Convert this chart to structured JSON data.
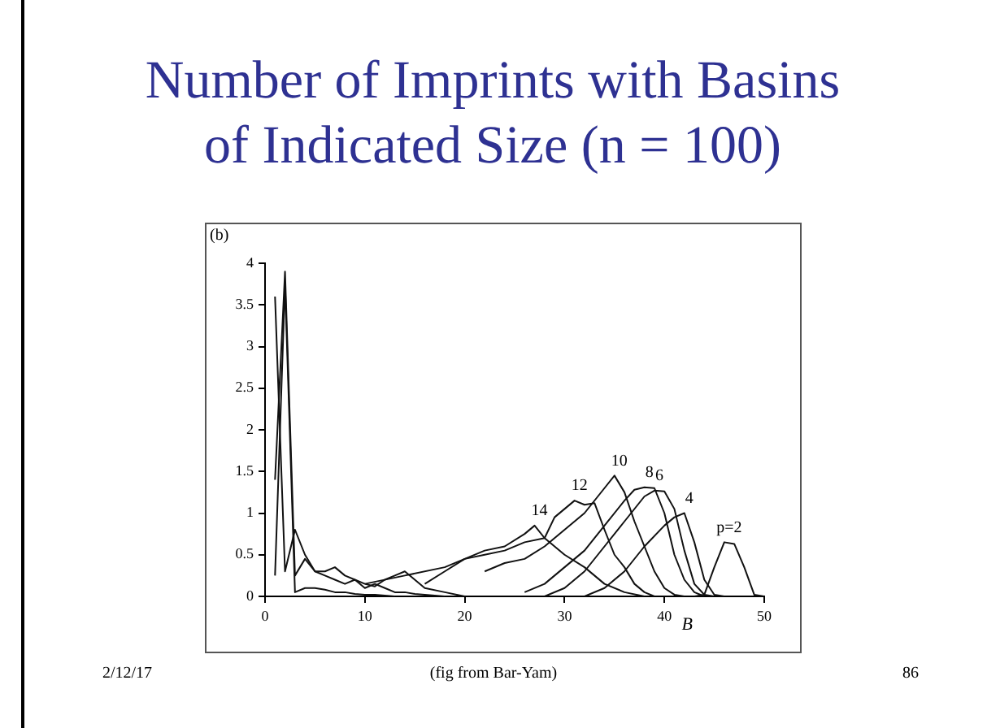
{
  "chart_data": {
    "type": "line",
    "title": "Number of Imprints with Basins of Indicated Size (n = 100)",
    "xlabel": "B",
    "xlim": [
      0,
      50
    ],
    "xticks": [
      0,
      10,
      20,
      30,
      40,
      50
    ],
    "ylim": [
      0,
      4
    ],
    "yticks": [
      0,
      0.5,
      1,
      1.5,
      2,
      2.5,
      3,
      3.5,
      4
    ],
    "grid": false,
    "legend": false,
    "marker": "none",
    "line_style": "solid",
    "annotations": [
      "(b)",
      "2/12/17",
      "(fig from Bar-Yam)",
      "86"
    ],
    "series": [
      {
        "name": "p=2",
        "color": "#111111",
        "x": [
          43,
          44,
          45,
          46,
          47,
          48,
          49,
          50
        ],
        "values": [
          0,
          0.02,
          0.35,
          0.65,
          0.63,
          0.35,
          0.02,
          0
        ]
      },
      {
        "name": "4",
        "color": "#111111",
        "x": [
          32,
          34,
          36,
          38,
          40,
          41,
          42,
          43,
          44,
          45,
          46
        ],
        "values": [
          0,
          0.1,
          0.3,
          0.6,
          0.85,
          0.95,
          1,
          0.65,
          0.2,
          0.02,
          0
        ]
      },
      {
        "name": "6",
        "color": "#111111",
        "x": [
          28,
          30,
          32,
          34,
          36,
          38,
          39,
          40,
          41,
          42,
          43,
          44,
          45
        ],
        "values": [
          0,
          0.1,
          0.3,
          0.6,
          0.9,
          1.2,
          1.27,
          1.26,
          1.05,
          0.55,
          0.15,
          0.02,
          0
        ]
      },
      {
        "name": "8",
        "color": "#111111",
        "x": [
          26,
          28,
          30,
          32,
          34,
          36,
          37,
          38,
          39,
          40,
          41,
          42,
          43,
          44
        ],
        "values": [
          0.05,
          0.15,
          0.35,
          0.55,
          0.85,
          1.15,
          1.28,
          1.31,
          1.3,
          1,
          0.5,
          0.2,
          0.05,
          0
        ]
      },
      {
        "name": "10",
        "color": "#111111",
        "x": [
          22,
          24,
          26,
          28,
          30,
          32,
          34,
          35,
          36,
          37,
          38,
          39,
          40,
          41,
          42
        ],
        "values": [
          0.3,
          0.4,
          0.45,
          0.6,
          0.8,
          1,
          1.3,
          1.45,
          1.25,
          0.9,
          0.6,
          0.3,
          0.1,
          0.02,
          0
        ]
      },
      {
        "name": "12",
        "color": "#111111",
        "x": [
          16,
          18,
          20,
          22,
          24,
          26,
          28,
          29,
          30,
          31,
          32,
          33,
          34,
          35,
          36,
          37,
          38,
          39
        ],
        "values": [
          0.15,
          0.3,
          0.45,
          0.5,
          0.55,
          0.65,
          0.7,
          0.95,
          1.05,
          1.15,
          1.1,
          1.12,
          0.8,
          0.5,
          0.35,
          0.15,
          0.05,
          0
        ]
      },
      {
        "name": "14",
        "color": "#111111",
        "x": [
          10,
          14,
          18,
          20,
          22,
          24,
          26,
          27,
          28,
          30,
          32,
          34,
          36,
          38
        ],
        "values": [
          0.15,
          0.25,
          0.35,
          0.45,
          0.55,
          0.6,
          0.75,
          0.85,
          0.7,
          0.5,
          0.35,
          0.15,
          0.05,
          0
        ]
      },
      {
        "color": "#111111",
        "x": [
          1,
          2,
          3,
          4,
          5,
          6,
          7,
          8,
          9,
          10,
          11,
          12,
          13,
          14,
          15,
          16,
          18,
          20
        ],
        "values": [
          3.6,
          0.3,
          0.8,
          0.5,
          0.3,
          0.3,
          0.35,
          0.25,
          0.2,
          0.15,
          0.12,
          0.2,
          0.25,
          0.3,
          0.2,
          0.1,
          0.05,
          0
        ]
      },
      {
        "color": "#111111",
        "x": [
          1,
          2,
          3,
          4,
          5,
          6,
          7,
          8,
          9,
          10,
          11,
          12,
          13,
          14,
          15,
          16,
          18
        ],
        "values": [
          1.4,
          3.9,
          0.25,
          0.45,
          0.3,
          0.25,
          0.2,
          0.15,
          0.2,
          0.1,
          0.15,
          0.1,
          0.05,
          0.05,
          0.03,
          0.02,
          0
        ]
      },
      {
        "color": "#111111",
        "x": [
          1,
          2,
          3,
          4,
          5,
          6,
          7,
          8,
          9,
          10,
          11,
          12,
          13
        ],
        "values": [
          0.25,
          3.75,
          0.05,
          0.1,
          0.1,
          0.08,
          0.05,
          0.05,
          0.03,
          0.02,
          0.02,
          0.01,
          0
        ]
      }
    ]
  }
}
